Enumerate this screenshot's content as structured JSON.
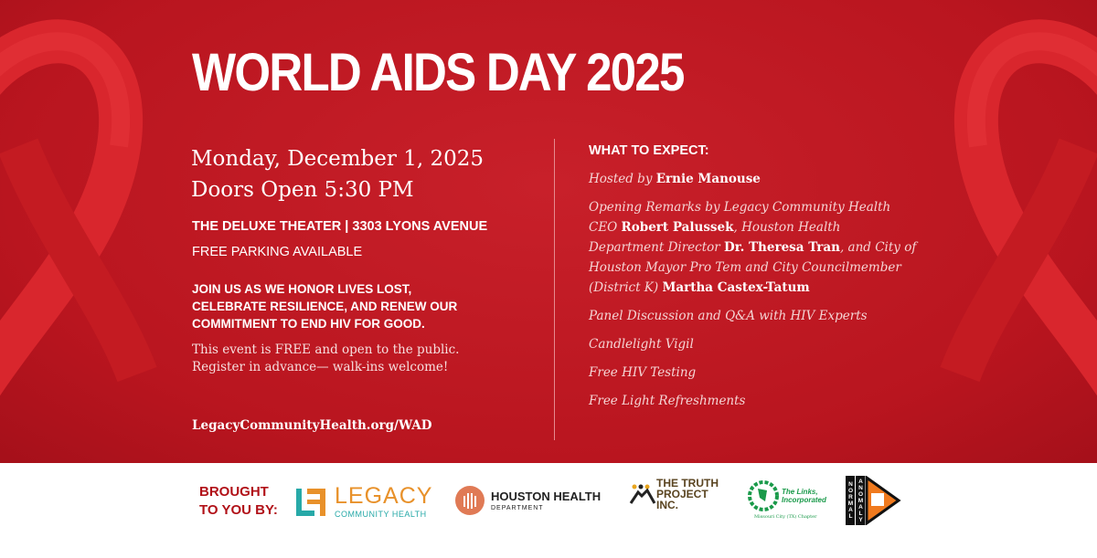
{
  "title": "WORLD AIDS DAY 2025",
  "date": "Monday, December 1, 2025",
  "doors": "Doors Open 5:30 PM",
  "venue": "THE DELUXE THEATER | 3303 LYONS AVENUE",
  "parking": "FREE PARKING AVAILABLE",
  "join": [
    "JOIN US AS WE HONOR LIVES LOST,",
    "CELEBRATE RESILIENCE, AND RENEW OUR",
    "COMMITMENT TO END HIV FOR GOOD."
  ],
  "free": [
    "This event is FREE and open to the public.",
    "Register in advance— walk-ins welcome!"
  ],
  "url": "LegacyCommunityHealth.org/WAD",
  "expect": {
    "heading": "WHAT TO EXPECT:",
    "hosted_prefix": "Hosted by ",
    "host": "Ernie Manouse",
    "remarks": {
      "p1": "Opening Remarks by Legacy Community Health CEO ",
      "n1": "Robert Palussek",
      "p2": ", Houston Health Department Director ",
      "n2": "Dr. Theresa Tran",
      "p3": ", and City of Houston Mayor Pro Tem and City Councilmember (District K) ",
      "n3": "Martha Castex-Tatum"
    },
    "items": [
      "Panel Discussion and Q&A with HIV Experts",
      "Candlelight Vigil",
      "Free HIV Testing",
      "Free Light Refreshments"
    ]
  },
  "footer": {
    "brought": [
      "BROUGHT",
      "TO YOU BY:"
    ],
    "logos": {
      "legacy": {
        "name": "LEGACY",
        "sub": "COMMUNITY HEALTH"
      },
      "houston": {
        "name": "HOUSTON HEALTH",
        "sub": "DEPARTMENT"
      },
      "truth": {
        "name": "THE TRUTH PROJECT INC."
      },
      "links": {
        "name": "The Links, Incorporated",
        "sub": "Missouri City (TX) Chapter"
      },
      "normal": {
        "name": "NORMAL ANOMALY"
      }
    }
  },
  "colors": {
    "banner": "#c1161f",
    "accent_red": "#b11118",
    "legacy_orange": "#e8912a",
    "legacy_teal": "#27a9a8",
    "houston_orange": "#e07a55",
    "links_green": "#1a9a4a"
  }
}
